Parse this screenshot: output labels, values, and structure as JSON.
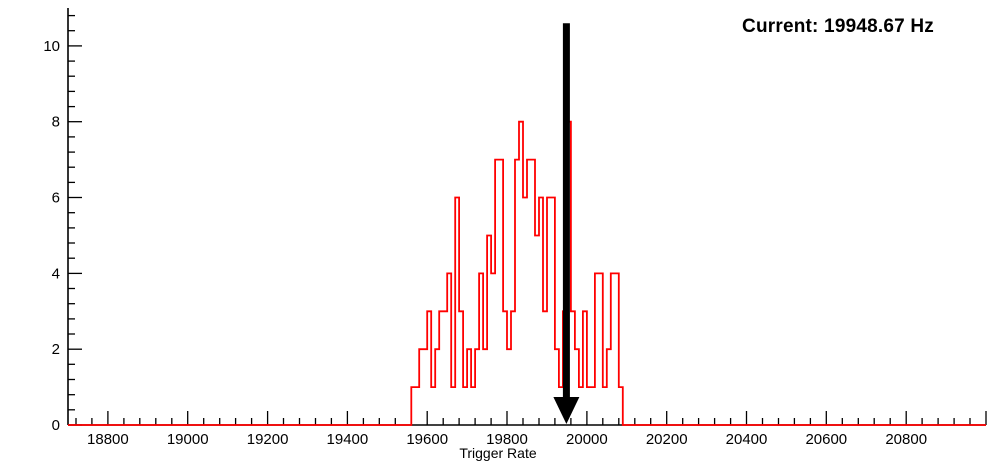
{
  "chart_data": {
    "type": "bar",
    "subtype": "step-histogram",
    "title": "",
    "xlabel": "Trigger Rate",
    "ylabel": "",
    "xlim": [
      18700,
      21000
    ],
    "ylim": [
      0,
      11
    ],
    "x_major_ticks": [
      18800,
      19000,
      19200,
      19400,
      19600,
      19800,
      20000,
      20200,
      20400,
      20600,
      20800
    ],
    "x_major_tick_labels": [
      "18800",
      "19000",
      "19200",
      "19400",
      "19600",
      "19800",
      "20000",
      "20200",
      "20400",
      "20600",
      "20800"
    ],
    "x_minor_step": 40,
    "y_major_ticks": [
      0,
      2,
      4,
      6,
      8,
      10
    ],
    "y_major_tick_labels": [
      "0",
      "2",
      "4",
      "6",
      "8",
      "10"
    ],
    "y_minor_step": 0.4,
    "grid": false,
    "legend": false,
    "series_color": "#ff0000",
    "axis_color": "#000000",
    "bin_start": 19560,
    "bin_width": 10,
    "counts": [
      1,
      1,
      2,
      2,
      3,
      1,
      2,
      3,
      3,
      4,
      1,
      6,
      3,
      1,
      2,
      1,
      2,
      4,
      2,
      5,
      4,
      7,
      7,
      3,
      2,
      3,
      7,
      8,
      6,
      7,
      7,
      5,
      6,
      3,
      6,
      6,
      2,
      1,
      3,
      8,
      3,
      2,
      1,
      3,
      1,
      1,
      4,
      4,
      1,
      2,
      4,
      4,
      1,
      0
    ],
    "annotation": {
      "text": "Current: 19948.67 Hz",
      "color": "#000000"
    },
    "arrow": {
      "x": 19948.67,
      "y_top": 10.6,
      "y_bottom": 0,
      "color": "#000000"
    }
  }
}
